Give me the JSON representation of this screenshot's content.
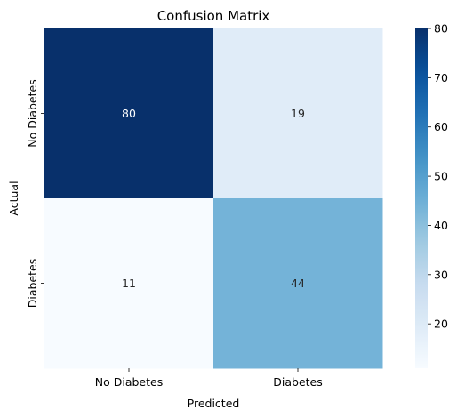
{
  "chart_data": {
    "type": "heatmap",
    "title": "Confusion Matrix",
    "xlabel": "Predicted",
    "ylabel": "Actual",
    "x_categories": [
      "No Diabetes",
      "Diabetes"
    ],
    "y_categories": [
      "No Diabetes",
      "Diabetes"
    ],
    "values": [
      [
        80,
        19
      ],
      [
        11,
        44
      ]
    ],
    "annotations": true,
    "colormap": "Blues",
    "colorbar": {
      "range": [
        11,
        80
      ],
      "ticks": [
        20,
        30,
        40,
        50,
        60,
        70,
        80
      ],
      "position": "right"
    },
    "grid": false
  }
}
